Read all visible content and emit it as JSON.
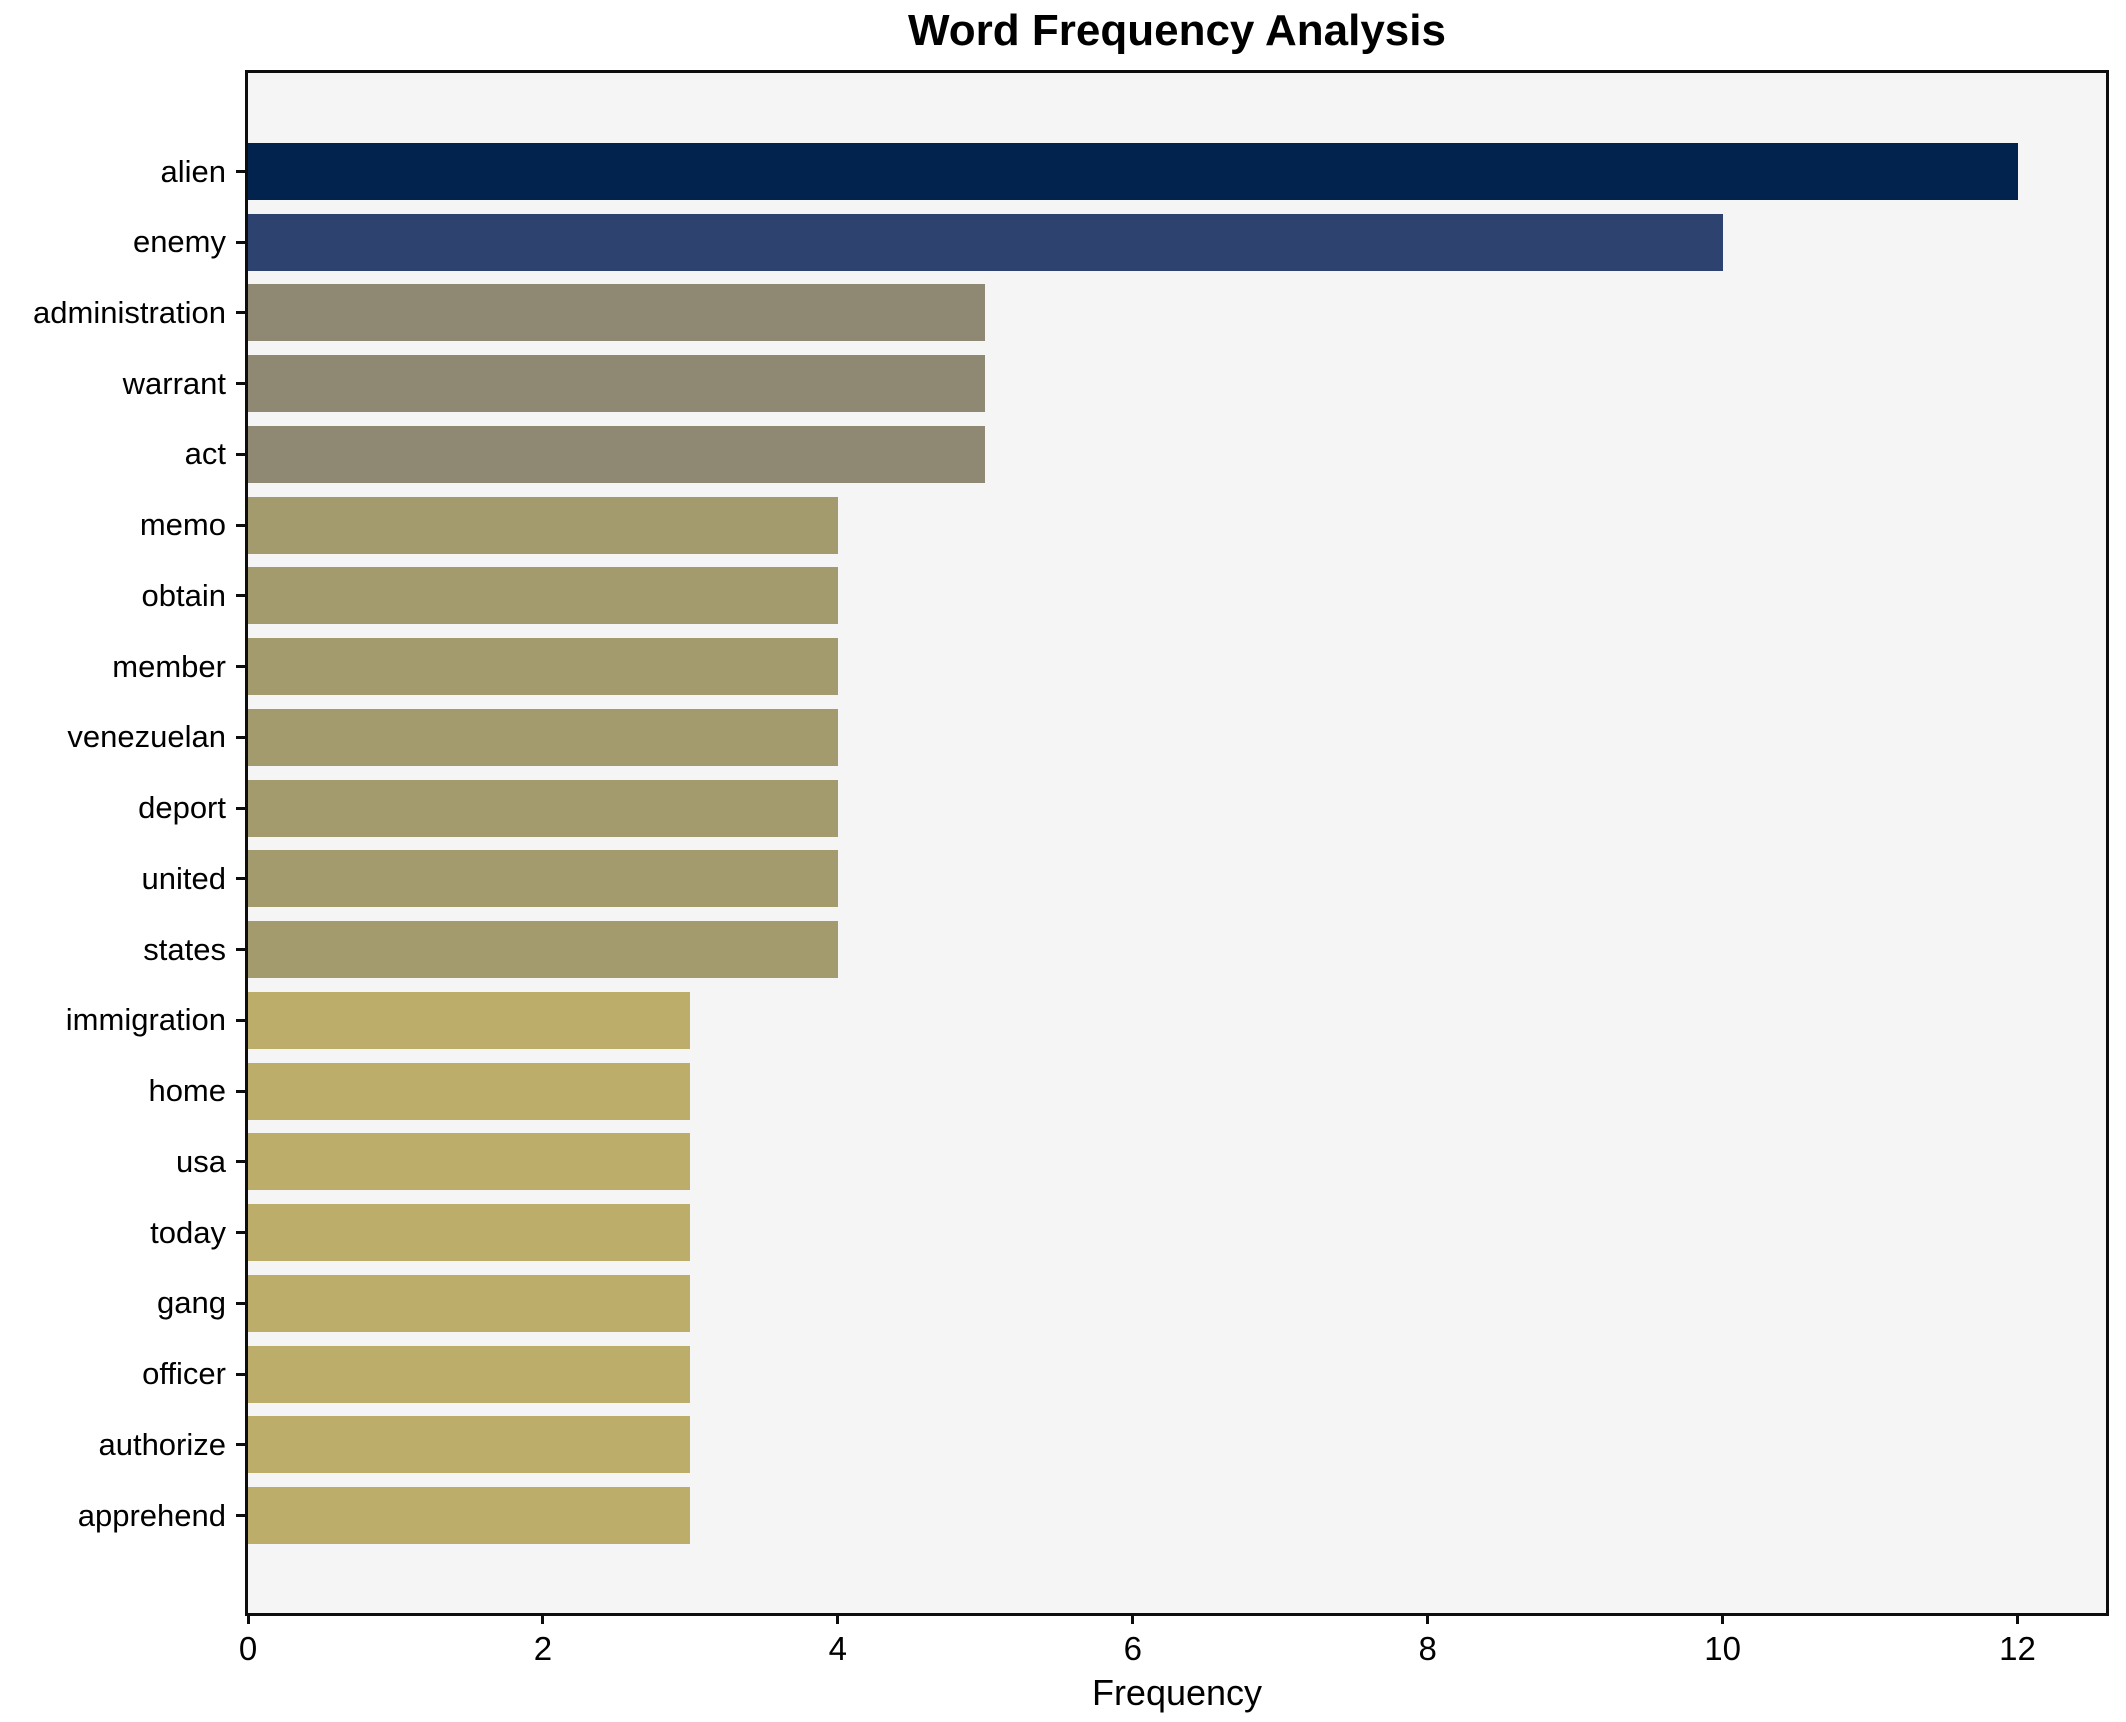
{
  "chart_data": {
    "type": "bar",
    "orientation": "horizontal",
    "title": "Word Frequency Analysis",
    "xlabel": "Frequency",
    "ylabel": "",
    "categories": [
      "alien",
      "enemy",
      "administration",
      "warrant",
      "act",
      "memo",
      "obtain",
      "member",
      "venezuelan",
      "deport",
      "united",
      "states",
      "immigration",
      "home",
      "usa",
      "today",
      "gang",
      "officer",
      "authorize",
      "apprehend"
    ],
    "values": [
      12,
      10,
      5,
      5,
      5,
      4,
      4,
      4,
      4,
      4,
      4,
      4,
      3,
      3,
      3,
      3,
      3,
      3,
      3,
      3
    ],
    "bar_colors": [
      "#02234e",
      "#2e426f",
      "#8f8973",
      "#8f8973",
      "#8f8973",
      "#a39a6e",
      "#a39a6e",
      "#a39a6e",
      "#a39a6e",
      "#a39a6e",
      "#a39a6e",
      "#a39a6e",
      "#bcae6a",
      "#bcae6a",
      "#bcae6a",
      "#bcae6a",
      "#bcae6a",
      "#bcae6a",
      "#bcae6a",
      "#bcae6a"
    ],
    "xticks": [
      0,
      2,
      4,
      6,
      8,
      10,
      12
    ],
    "xlim": [
      0,
      12.6
    ],
    "grid": false,
    "legend": null,
    "plot_background": "#f5f5f6",
    "figure_background": "#ffffff",
    "spine_color": "#0d0d0d"
  }
}
